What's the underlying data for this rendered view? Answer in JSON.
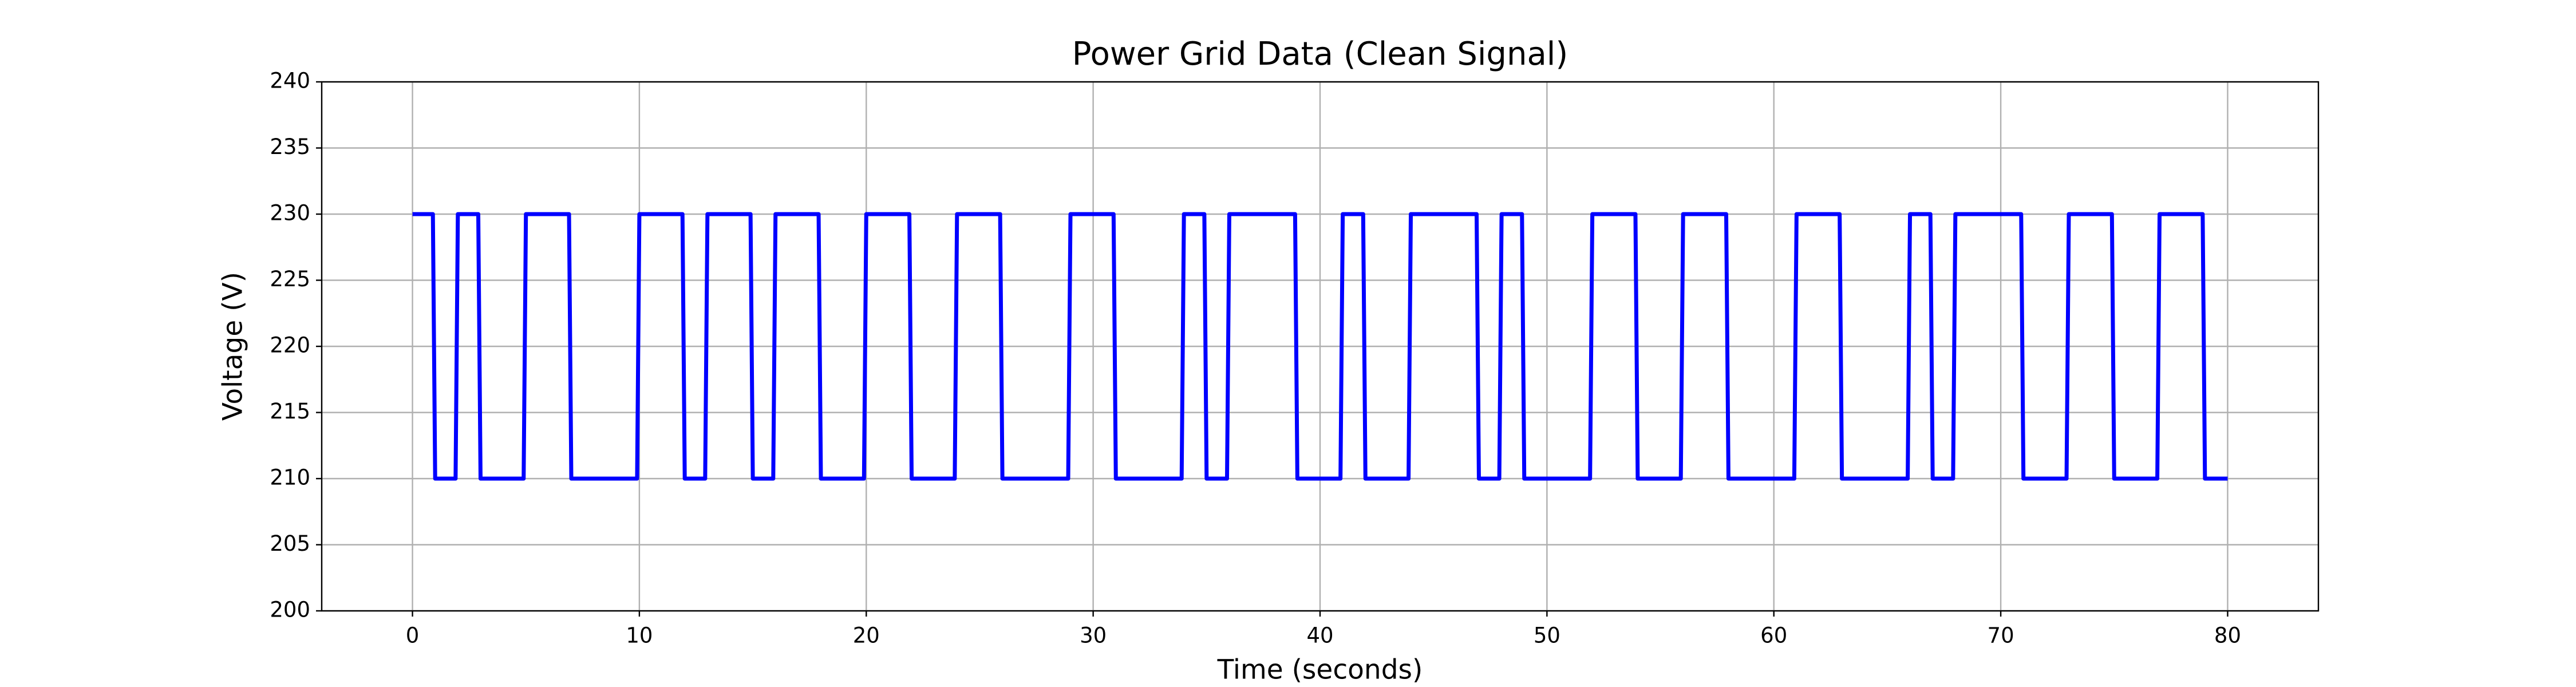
{
  "chart_data": {
    "type": "line",
    "title": "Power Grid Data (Clean Signal)",
    "xlabel": "Time (seconds)",
    "ylabel": "Voltage (V)",
    "x": [
      0,
      0.9,
      1,
      1.9,
      2,
      2.9,
      3,
      4.9,
      5,
      6.9,
      7,
      9.9,
      10,
      11.9,
      12,
      12.9,
      13,
      14.9,
      15,
      15.9,
      16,
      17.9,
      18,
      19.9,
      20,
      21.9,
      22,
      23.9,
      24,
      25.9,
      26,
      28.9,
      29,
      30.9,
      31,
      33.9,
      34,
      34.9,
      35,
      35.9,
      36,
      38.9,
      39,
      40.9,
      41,
      41.9,
      42,
      43.9,
      44,
      46.9,
      47,
      47.9,
      48,
      48.9,
      49,
      51.9,
      52,
      53.9,
      54,
      55.9,
      56,
      57.9,
      58,
      60.9,
      61,
      62.9,
      63,
      65.9,
      66,
      66.9,
      67,
      67.9,
      68,
      70.9,
      71,
      72.9,
      73,
      74.9,
      75,
      76.9,
      77,
      78.9,
      79,
      80
    ],
    "series": [
      {
        "color": "#0000ff",
        "values": [
          230,
          230,
          210,
          210,
          230,
          230,
          210,
          210,
          230,
          230,
          210,
          210,
          230,
          230,
          210,
          210,
          230,
          230,
          210,
          210,
          230,
          230,
          210,
          210,
          230,
          230,
          210,
          210,
          230,
          230,
          210,
          210,
          230,
          230,
          210,
          210,
          230,
          230,
          210,
          210,
          230,
          230,
          210,
          210,
          230,
          230,
          210,
          210,
          230,
          230,
          210,
          210,
          230,
          230,
          210,
          210,
          230,
          230,
          210,
          210,
          230,
          230,
          210,
          210,
          230,
          230,
          210,
          210,
          230,
          230,
          210,
          210,
          230,
          230,
          210,
          210,
          230,
          230,
          210,
          210,
          230,
          230,
          210,
          210
        ]
      }
    ],
    "xlim": [
      -4,
      84
    ],
    "xticks": [
      0,
      10,
      20,
      30,
      40,
      50,
      60,
      70,
      80
    ],
    "ylim": [
      200,
      240
    ],
    "yticks": [
      200,
      205,
      210,
      215,
      220,
      225,
      230,
      235,
      240
    ],
    "grid": true
  }
}
